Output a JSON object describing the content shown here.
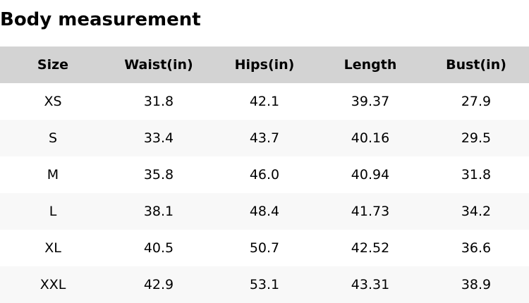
{
  "title": "Body measurement",
  "headers": [
    "Size",
    "Waist(in)",
    "Hips(in)",
    "Length",
    "Bust(in)"
  ],
  "rows": [
    [
      "XS",
      "31.8",
      "42.1",
      "39.37",
      "27.9"
    ],
    [
      "S",
      "33.4",
      "43.7",
      "40.16",
      "29.5"
    ],
    [
      "M",
      "35.8",
      "46.0",
      "40.94",
      "31.8"
    ],
    [
      "L",
      "38.1",
      "48.4",
      "41.73",
      "34.2"
    ],
    [
      "XL",
      "40.5",
      "50.7",
      "42.52",
      "36.6"
    ],
    [
      "XXL",
      "42.9",
      "53.1",
      "43.31",
      "38.9"
    ]
  ],
  "colors": {
    "header_bg": "#d3d3d3",
    "row_alt_bg": "#f8f8f8"
  }
}
